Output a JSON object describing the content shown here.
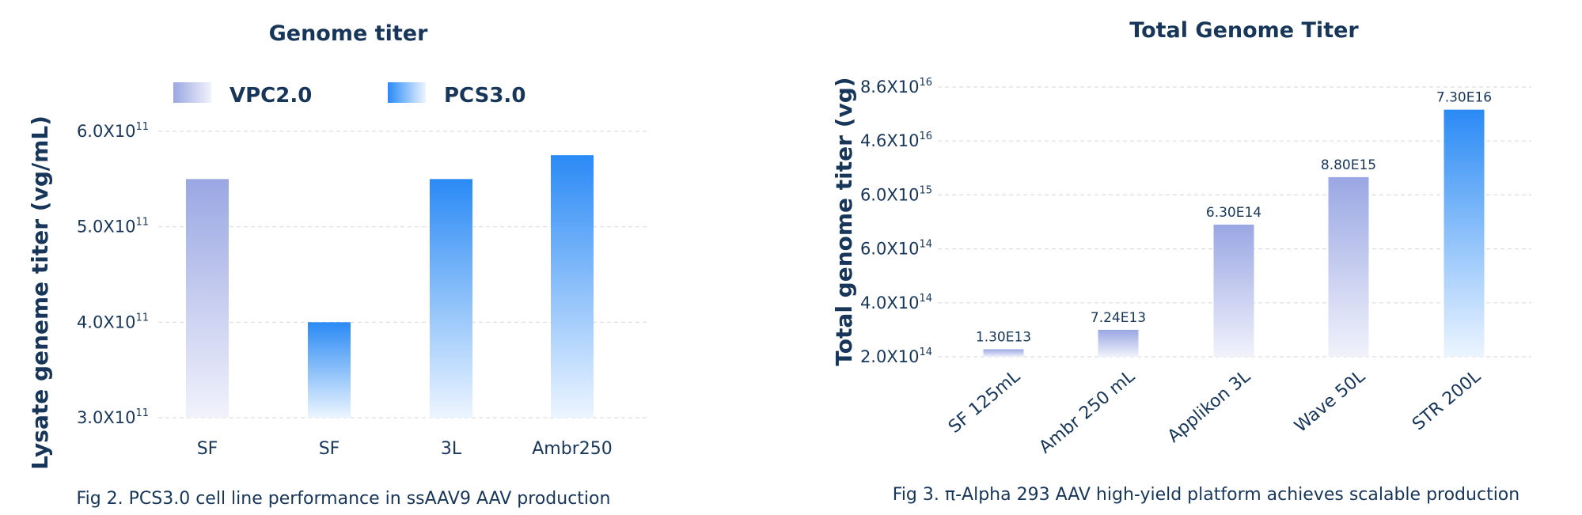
{
  "colors": {
    "vpc_top": "#9aa7e3",
    "vpc_bottom": "#f1f2fb",
    "pcs_top": "#2a8af5",
    "pcs_bottom": "#ecf5ff",
    "text": "#17365a",
    "grid": "#d9dde3"
  },
  "chart_data": [
    {
      "type": "bar",
      "title": "Genome titer",
      "ylabel": "Lysate geneme titer (vg/mL)",
      "xlabel": "",
      "y_ticks": [
        {
          "base": "3.0X10",
          "exp": "11",
          "value": 300000000000.0
        },
        {
          "base": "4.0X10",
          "exp": "11",
          "value": 400000000000.0
        },
        {
          "base": "5.0X10",
          "exp": "11",
          "value": 500000000000.0
        },
        {
          "base": "6.0X10",
          "exp": "11",
          "value": 600000000000.0
        }
      ],
      "ylim": [
        300000000000.0,
        600000000000.0
      ],
      "legend": [
        {
          "label": "VPC2.0",
          "color_key": "vpc"
        },
        {
          "label": "PCS3.0",
          "color_key": "pcs"
        }
      ],
      "legend_position": "top",
      "categories": [
        "SF",
        "SF",
        "3L",
        "Ambr250"
      ],
      "bars": [
        {
          "category": "SF",
          "series": "VPC2.0",
          "value": 550000000000.0,
          "color_key": "vpc"
        },
        {
          "category": "SF",
          "series": "PCS3.0",
          "value": 400000000000.0,
          "color_key": "pcs"
        },
        {
          "category": "3L",
          "series": "PCS3.0",
          "value": 550000000000.0,
          "color_key": "pcs"
        },
        {
          "category": "Ambr250",
          "series": "PCS3.0",
          "value": 575000000000.0,
          "color_key": "pcs"
        }
      ],
      "caption": "Fig 2. PCS3.0 cell line performance in ssAAV9 AAV production",
      "grid": true
    },
    {
      "type": "bar",
      "title": "Total Genome Titer",
      "ylabel": "Total genome titer (vg)",
      "xlabel": "",
      "y_ticks": [
        {
          "base": "2.0X10",
          "exp": "14",
          "level": 0
        },
        {
          "base": "4.0X10",
          "exp": "14",
          "level": 1
        },
        {
          "base": "6.0X10",
          "exp": "14",
          "level": 2
        },
        {
          "base": "6.0X10",
          "exp": "15",
          "level": 3
        },
        {
          "base": "4.6X10",
          "exp": "16",
          "level": 4
        },
        {
          "base": "8.6X10",
          "exp": "16",
          "level": 5
        }
      ],
      "axis_scale": "categorical tick levels 0-5",
      "categories": [
        "SF 125mL",
        "Ambr 250 mL",
        "Applikon 3L",
        "Wave 50L",
        "STR 200L"
      ],
      "bars": [
        {
          "category": "SF 125mL",
          "label": "1.30E13",
          "level": 0.14,
          "color_key": "vpc"
        },
        {
          "category": "Ambr 250 mL",
          "label": "7.24E13",
          "level": 0.5,
          "color_key": "vpc"
        },
        {
          "category": "Applikon 3L",
          "label": "6.30E14",
          "level": 2.45,
          "color_key": "vpc"
        },
        {
          "category": "Wave 50L",
          "label": "8.80E15",
          "level": 3.33,
          "color_key": "vpc"
        },
        {
          "category": "STR 200L",
          "label": "7.30E16",
          "level": 4.58,
          "color_key": "pcs"
        }
      ],
      "caption": "Fig 3. π-Alpha 293 AAV high-yield platform achieves scalable production",
      "grid": true
    }
  ]
}
